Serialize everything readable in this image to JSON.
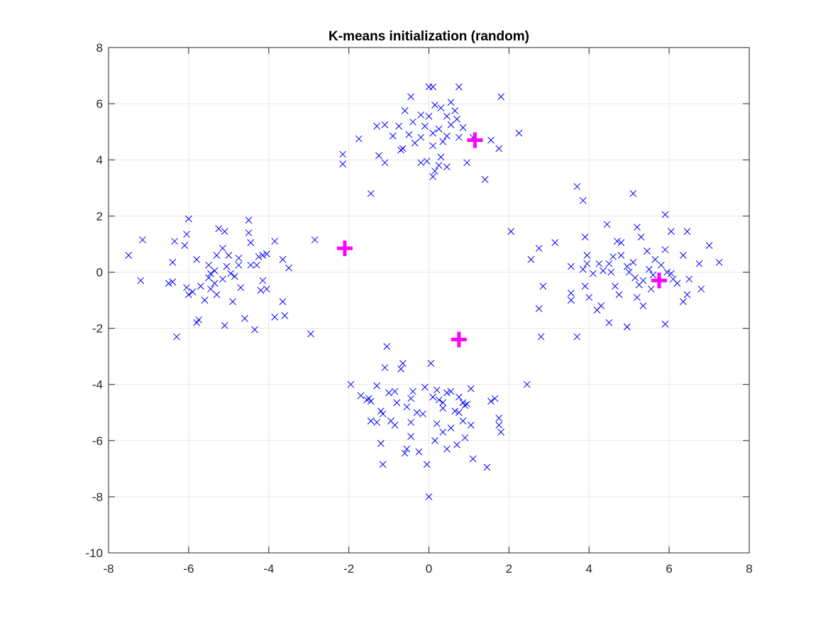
{
  "chart_data": {
    "type": "scatter",
    "title": "K-means initialization (random)",
    "xlabel": "",
    "ylabel": "",
    "xlim": [
      -8,
      8
    ],
    "ylim": [
      -10,
      8
    ],
    "xticks": [
      -8,
      -6,
      -4,
      -2,
      0,
      2,
      4,
      6,
      8
    ],
    "yticks": [
      -10,
      -8,
      -6,
      -4,
      -2,
      0,
      2,
      4,
      6,
      8
    ],
    "grid": true,
    "legend": "none",
    "series": [
      {
        "marker": "x",
        "color": "#0000ff",
        "points": [
          [
            0.0,
            6.6
          ],
          [
            0.1,
            6.6
          ],
          [
            0.75,
            6.6
          ],
          [
            1.8,
            6.25
          ],
          [
            -0.45,
            6.25
          ],
          [
            0.15,
            5.95
          ],
          [
            0.3,
            5.85
          ],
          [
            0.55,
            6.05
          ],
          [
            0.65,
            5.75
          ],
          [
            -0.6,
            5.75
          ],
          [
            -0.2,
            5.6
          ],
          [
            0.0,
            5.55
          ],
          [
            0.45,
            5.55
          ],
          [
            0.7,
            5.45
          ],
          [
            -1.3,
            5.2
          ],
          [
            -1.1,
            5.25
          ],
          [
            -0.75,
            5.2
          ],
          [
            -0.4,
            5.35
          ],
          [
            -0.1,
            5.2
          ],
          [
            0.25,
            5.1
          ],
          [
            0.55,
            5.25
          ],
          [
            0.85,
            5.15
          ],
          [
            -0.5,
            4.9
          ],
          [
            -0.9,
            4.85
          ],
          [
            -1.75,
            4.75
          ],
          [
            -0.2,
            4.8
          ],
          [
            0.1,
            4.95
          ],
          [
            0.45,
            4.85
          ],
          [
            0.75,
            4.8
          ],
          [
            1.1,
            4.8
          ],
          [
            -0.35,
            4.6
          ],
          [
            -0.65,
            4.4
          ],
          [
            0.1,
            4.5
          ],
          [
            0.35,
            4.65
          ],
          [
            1.55,
            4.7
          ],
          [
            2.25,
            4.95
          ],
          [
            1.75,
            4.4
          ],
          [
            -2.15,
            4.2
          ],
          [
            -1.25,
            4.15
          ],
          [
            -1.1,
            3.9
          ],
          [
            -0.05,
            3.95
          ],
          [
            0.3,
            4.1
          ],
          [
            0.45,
            3.75
          ],
          [
            0.15,
            3.6
          ],
          [
            0.1,
            3.4
          ],
          [
            -0.2,
            3.9
          ],
          [
            0.95,
            3.9
          ],
          [
            1.4,
            3.3
          ],
          [
            -1.45,
            2.8
          ],
          [
            -2.15,
            3.85
          ],
          [
            -0.7,
            4.35
          ],
          [
            0.25,
            3.8
          ],
          [
            -6.0,
            1.9
          ],
          [
            -6.05,
            1.35
          ],
          [
            -6.35,
            1.1
          ],
          [
            -7.15,
            1.15
          ],
          [
            -7.5,
            0.6
          ],
          [
            -7.2,
            -0.3
          ],
          [
            -6.5,
            -0.4
          ],
          [
            -6.4,
            -0.35
          ],
          [
            -6.05,
            -0.55
          ],
          [
            -6.0,
            -0.8
          ],
          [
            -6.4,
            0.35
          ],
          [
            -6.1,
            0.95
          ],
          [
            -5.8,
            0.45
          ],
          [
            -5.5,
            0.25
          ],
          [
            -5.3,
            0.6
          ],
          [
            -5.25,
            1.55
          ],
          [
            -5.1,
            1.45
          ],
          [
            -5.15,
            0.85
          ],
          [
            -5.0,
            0.6
          ],
          [
            -4.75,
            0.5
          ],
          [
            -4.5,
            1.4
          ],
          [
            -4.5,
            1.85
          ],
          [
            -4.45,
            1.05
          ],
          [
            -4.25,
            0.55
          ],
          [
            -4.15,
            0.6
          ],
          [
            -4.05,
            0.65
          ],
          [
            -3.85,
            1.1
          ],
          [
            -3.65,
            0.45
          ],
          [
            -3.5,
            0.15
          ],
          [
            -4.3,
            0.25
          ],
          [
            -4.45,
            0.25
          ],
          [
            -4.75,
            0.25
          ],
          [
            -5.05,
            0.2
          ],
          [
            -5.35,
            0.05
          ],
          [
            -5.45,
            -0.05
          ],
          [
            -5.5,
            -0.2
          ],
          [
            -5.7,
            -0.5
          ],
          [
            -5.45,
            -0.6
          ],
          [
            -5.35,
            -0.4
          ],
          [
            -5.15,
            -0.25
          ],
          [
            -4.95,
            -0.05
          ],
          [
            -4.85,
            -0.15
          ],
          [
            -4.7,
            -0.55
          ],
          [
            -4.15,
            -0.3
          ],
          [
            -4.05,
            -0.6
          ],
          [
            -4.2,
            -0.65
          ],
          [
            -3.65,
            -1.05
          ],
          [
            -3.85,
            -1.6
          ],
          [
            -3.6,
            -1.55
          ],
          [
            -4.6,
            -1.65
          ],
          [
            -4.35,
            -2.05
          ],
          [
            -5.1,
            -1.9
          ],
          [
            -5.8,
            -1.8
          ],
          [
            -5.75,
            -1.7
          ],
          [
            -6.3,
            -2.3
          ],
          [
            -2.95,
            -2.2
          ],
          [
            -2.85,
            1.15
          ],
          [
            -5.6,
            -1.0
          ],
          [
            -5.9,
            -0.7
          ],
          [
            -4.9,
            -1.05
          ],
          [
            -5.3,
            -0.8
          ],
          [
            3.7,
            3.05
          ],
          [
            3.85,
            2.55
          ],
          [
            5.1,
            2.8
          ],
          [
            5.9,
            2.05
          ],
          [
            5.2,
            1.6
          ],
          [
            6.05,
            1.45
          ],
          [
            6.45,
            1.45
          ],
          [
            7.0,
            0.95
          ],
          [
            4.45,
            1.7
          ],
          [
            4.7,
            1.1
          ],
          [
            5.3,
            1.25
          ],
          [
            5.45,
            0.75
          ],
          [
            5.9,
            0.8
          ],
          [
            6.35,
            0.6
          ],
          [
            6.75,
            0.3
          ],
          [
            7.25,
            0.35
          ],
          [
            6.5,
            -0.25
          ],
          [
            6.8,
            -0.6
          ],
          [
            6.45,
            -0.8
          ],
          [
            6.35,
            -1.05
          ],
          [
            5.9,
            -1.85
          ],
          [
            5.35,
            -1.2
          ],
          [
            5.2,
            -0.9
          ],
          [
            4.95,
            -1.95
          ],
          [
            4.95,
            -1.95
          ],
          [
            4.5,
            -1.8
          ],
          [
            4.3,
            -1.2
          ],
          [
            4.2,
            -1.35
          ],
          [
            4.0,
            -0.9
          ],
          [
            3.55,
            -0.75
          ],
          [
            3.55,
            -1.0
          ],
          [
            3.7,
            -2.3
          ],
          [
            2.8,
            -2.3
          ],
          [
            2.75,
            -1.3
          ],
          [
            2.85,
            -0.5
          ],
          [
            2.55,
            0.45
          ],
          [
            2.75,
            0.85
          ],
          [
            3.15,
            1.05
          ],
          [
            2.05,
            1.45
          ],
          [
            3.9,
            1.25
          ],
          [
            3.95,
            0.6
          ],
          [
            3.85,
            0.1
          ],
          [
            3.55,
            0.2
          ],
          [
            3.95,
            0.3
          ],
          [
            4.1,
            -0.05
          ],
          [
            4.35,
            0.05
          ],
          [
            4.5,
            0.3
          ],
          [
            4.6,
            0.55
          ],
          [
            4.8,
            0.6
          ],
          [
            4.95,
            0.2
          ],
          [
            5.0,
            0.0
          ],
          [
            5.15,
            -0.2
          ],
          [
            5.35,
            -0.3
          ],
          [
            5.5,
            0.1
          ],
          [
            5.65,
            0.45
          ],
          [
            5.8,
            0.25
          ],
          [
            5.95,
            0.0
          ],
          [
            6.1,
            -0.25
          ],
          [
            6.2,
            -0.4
          ],
          [
            5.6,
            -0.1
          ],
          [
            4.65,
            -0.5
          ],
          [
            4.75,
            -0.8
          ],
          [
            3.9,
            -0.5
          ],
          [
            4.55,
            0.0
          ],
          [
            4.25,
            0.3
          ],
          [
            5.25,
            -0.45
          ],
          [
            4.8,
            1.05
          ],
          [
            5.1,
            0.35
          ],
          [
            5.55,
            -0.6
          ],
          [
            6.05,
            -0.05
          ]
        ]
      },
      {
        "marker": "x",
        "color": "#0000ff",
        "points": [
          [
            -1.05,
            -2.65
          ],
          [
            -0.65,
            -3.25
          ],
          [
            0.05,
            -3.25
          ],
          [
            -1.1,
            -3.4
          ],
          [
            -0.7,
            -3.45
          ],
          [
            -1.95,
            -4.0
          ],
          [
            -1.3,
            -4.05
          ],
          [
            -0.4,
            -4.25
          ],
          [
            -0.1,
            -4.1
          ],
          [
            0.2,
            -4.2
          ],
          [
            0.45,
            -4.3
          ],
          [
            0.55,
            -4.25
          ],
          [
            1.05,
            -4.15
          ],
          [
            -1.7,
            -4.4
          ],
          [
            -1.55,
            -4.55
          ],
          [
            -1.45,
            -4.6
          ],
          [
            -1.5,
            -4.5
          ],
          [
            -1.0,
            -4.3
          ],
          [
            -0.85,
            -4.25
          ],
          [
            -0.8,
            -4.65
          ],
          [
            -0.45,
            -4.5
          ],
          [
            0.1,
            -4.45
          ],
          [
            0.25,
            -4.55
          ],
          [
            0.75,
            -4.45
          ],
          [
            0.85,
            -4.65
          ],
          [
            1.65,
            -4.5
          ],
          [
            1.55,
            -4.6
          ],
          [
            -1.2,
            -4.95
          ],
          [
            -1.15,
            -5.05
          ],
          [
            -0.55,
            -4.8
          ],
          [
            -0.3,
            -5.0
          ],
          [
            0.35,
            -4.85
          ],
          [
            0.65,
            -4.95
          ],
          [
            0.75,
            -5.0
          ],
          [
            0.95,
            -4.7
          ],
          [
            1.75,
            -5.2
          ],
          [
            1.75,
            -5.45
          ],
          [
            1.8,
            -5.7
          ],
          [
            -1.45,
            -5.3
          ],
          [
            -1.3,
            -5.35
          ],
          [
            -0.95,
            -5.3
          ],
          [
            -0.85,
            -5.45
          ],
          [
            -0.45,
            -5.35
          ],
          [
            0.2,
            -5.4
          ],
          [
            0.55,
            -5.55
          ],
          [
            0.85,
            -5.3
          ],
          [
            1.05,
            -5.45
          ],
          [
            -0.45,
            -5.85
          ],
          [
            0.35,
            -5.7
          ],
          [
            0.9,
            -5.9
          ],
          [
            -1.2,
            -6.1
          ],
          [
            -0.55,
            -6.3
          ],
          [
            -0.6,
            -6.45
          ],
          [
            -0.25,
            -6.4
          ],
          [
            0.15,
            -6.0
          ],
          [
            0.45,
            -6.3
          ],
          [
            0.7,
            -6.15
          ],
          [
            1.1,
            -6.65
          ],
          [
            1.45,
            -6.95
          ],
          [
            -1.15,
            -6.85
          ],
          [
            -0.05,
            -6.85
          ],
          [
            0.0,
            -8.0
          ],
          [
            2.45,
            -4.0
          ],
          [
            0.35,
            -4.65
          ],
          [
            -0.15,
            -5.05
          ],
          [
            0.9,
            -4.75
          ]
        ]
      },
      {
        "marker": "plus",
        "color": "#ff00ff",
        "name": "",
        "points": [
          [
            1.15,
            4.7
          ],
          [
            -2.1,
            0.85
          ],
          [
            5.75,
            -0.3
          ],
          [
            0.75,
            -2.4
          ]
        ]
      }
    ]
  }
}
